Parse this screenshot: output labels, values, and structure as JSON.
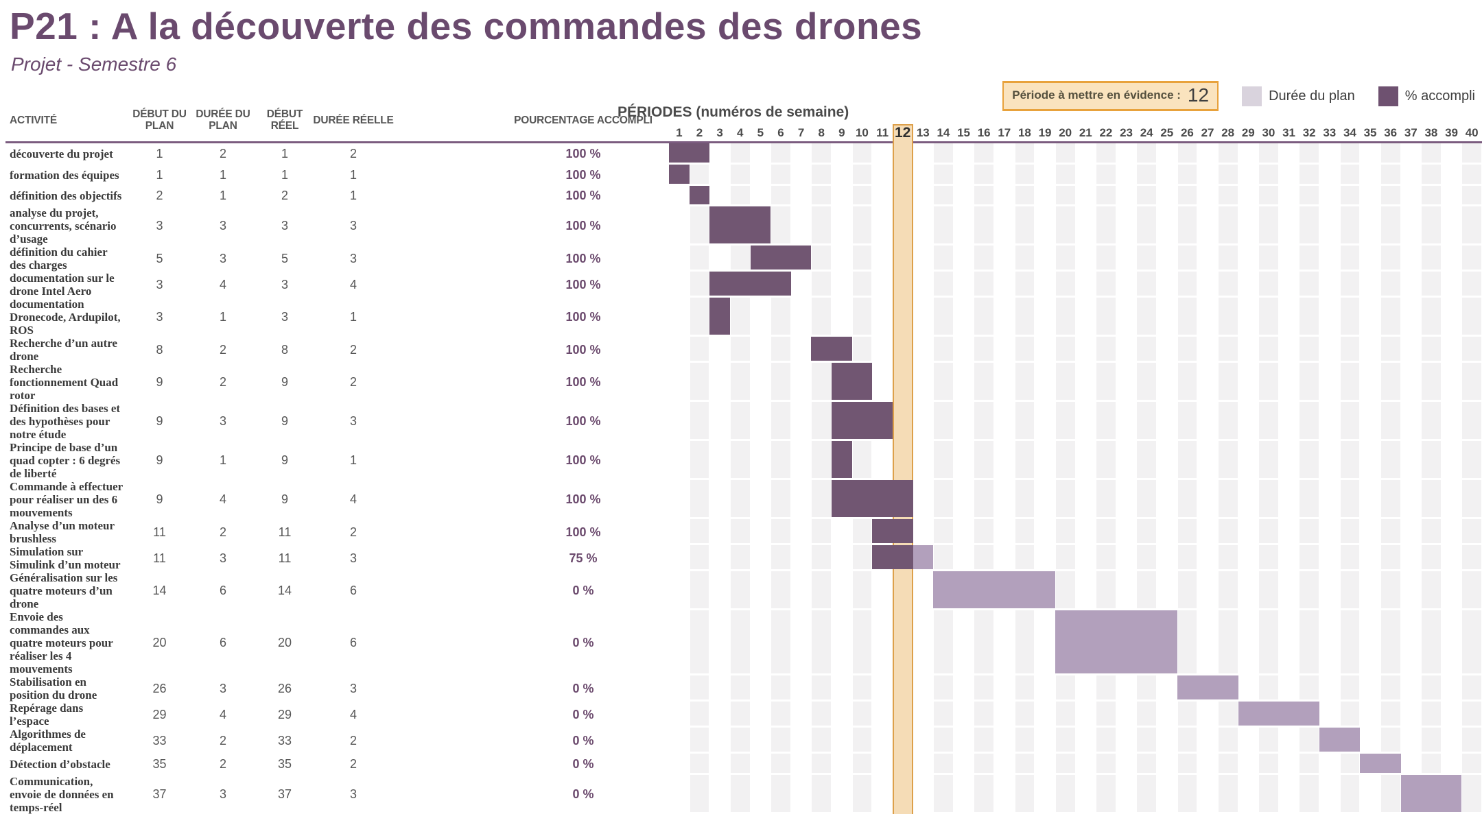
{
  "title": "P21 : A la découverte des commandes des drones",
  "subtitle": "Projet - Semestre 6",
  "highlight": {
    "label": "Période à mettre en évidence :",
    "value": "12"
  },
  "legend": [
    {
      "label": "Durée du plan",
      "color": "#d9d3dd"
    },
    {
      "label": "% accompli",
      "color": "#6e5170"
    }
  ],
  "table_headers": {
    "activity": "ACTIVITÉ",
    "plan_start": "DÉBUT DU PLAN",
    "plan_dur": "DURÉE DU PLAN",
    "real_start": "DÉBUT RÉEL",
    "real_dur": "DURÉE RÉELLE",
    "pct": "POURCENTAGE ACCOMPLI"
  },
  "periods": {
    "title": "PÉRIODES (numéros de semaine)",
    "weeks": [
      1,
      2,
      3,
      4,
      5,
      6,
      7,
      8,
      9,
      10,
      11,
      12,
      13,
      14,
      15,
      16,
      17,
      18,
      19,
      20,
      21,
      22,
      23,
      24,
      25,
      26,
      27,
      28,
      29,
      30,
      31,
      32,
      33,
      34,
      35,
      36,
      37,
      38,
      39,
      40
    ],
    "highlight_week": 12
  },
  "rows": [
    {
      "activity": "découverte du projet",
      "plan_start": 1,
      "plan_dur": 2,
      "real_start": 1,
      "real_dur": 2,
      "pct": "100 %",
      "tall": false,
      "bars": [
        {
          "type": "done",
          "start": 1,
          "len": 2
        }
      ]
    },
    {
      "activity": "formation des équipes",
      "plan_start": 1,
      "plan_dur": 1,
      "real_start": 1,
      "real_dur": 1,
      "pct": "100 %",
      "tall": false,
      "bars": [
        {
          "type": "done",
          "start": 1,
          "len": 1
        }
      ]
    },
    {
      "activity": "définition des objectifs",
      "plan_start": 2,
      "plan_dur": 1,
      "real_start": 2,
      "real_dur": 1,
      "pct": "100 %",
      "tall": false,
      "bars": [
        {
          "type": "done",
          "start": 2,
          "len": 1
        }
      ]
    },
    {
      "activity": "analyse du projet, concurrents, scénario d’usage",
      "plan_start": 3,
      "plan_dur": 3,
      "real_start": 3,
      "real_dur": 3,
      "pct": "100 %",
      "tall": false,
      "bars": [
        {
          "type": "done",
          "start": 3,
          "len": 3
        }
      ]
    },
    {
      "activity": "définition du cahier des charges",
      "plan_start": 5,
      "plan_dur": 3,
      "real_start": 5,
      "real_dur": 3,
      "pct": "100 %",
      "tall": false,
      "bars": [
        {
          "type": "done",
          "start": 5,
          "len": 3
        }
      ]
    },
    {
      "activity": "documentation sur le drone Intel Aero",
      "plan_start": 3,
      "plan_dur": 4,
      "real_start": 3,
      "real_dur": 4,
      "pct": "100 %",
      "tall": false,
      "bars": [
        {
          "type": "done",
          "start": 3,
          "len": 4
        }
      ]
    },
    {
      "activity": "documentation Dronecode, Ardupilot, ROS",
      "plan_start": 3,
      "plan_dur": 1,
      "real_start": 3,
      "real_dur": 1,
      "pct": "100 %",
      "tall": false,
      "bars": [
        {
          "type": "done",
          "start": 3,
          "len": 1
        }
      ]
    },
    {
      "activity": "Recherche d’un autre drone",
      "plan_start": 8,
      "plan_dur": 2,
      "real_start": 8,
      "real_dur": 2,
      "pct": "100 %",
      "tall": false,
      "bars": [
        {
          "type": "done",
          "start": 8,
          "len": 2
        }
      ]
    },
    {
      "activity": "Recherche fonctionnement Quad rotor",
      "plan_start": 9,
      "plan_dur": 2,
      "real_start": 9,
      "real_dur": 2,
      "pct": "100 %",
      "tall": false,
      "bars": [
        {
          "type": "done",
          "start": 9,
          "len": 2
        }
      ]
    },
    {
      "activity": "Définition des bases et des hypothèses pour notre étude",
      "plan_start": 9,
      "plan_dur": 3,
      "real_start": 9,
      "real_dur": 3,
      "pct": "100 %",
      "tall": false,
      "bars": [
        {
          "type": "done",
          "start": 9,
          "len": 3
        }
      ]
    },
    {
      "activity": "Principe de base d’un quad copter : 6 degrés de liberté",
      "plan_start": 9,
      "plan_dur": 1,
      "real_start": 9,
      "real_dur": 1,
      "pct": "100 %",
      "tall": false,
      "bars": [
        {
          "type": "done",
          "start": 9,
          "len": 1
        }
      ]
    },
    {
      "activity": "Commande à effectuer pour réaliser un des 6 mouvements",
      "plan_start": 9,
      "plan_dur": 4,
      "real_start": 9,
      "real_dur": 4,
      "pct": "100 %",
      "tall": false,
      "bars": [
        {
          "type": "done",
          "start": 9,
          "len": 4
        }
      ]
    },
    {
      "activity": "Analyse d’un moteur brushless",
      "plan_start": 11,
      "plan_dur": 2,
      "real_start": 11,
      "real_dur": 2,
      "pct": "100 %",
      "tall": false,
      "bars": [
        {
          "type": "done",
          "start": 11,
          "len": 2
        }
      ]
    },
    {
      "activity": "Simulation sur Simulink d’un moteur",
      "plan_start": 11,
      "plan_dur": 3,
      "real_start": 11,
      "real_dur": 3,
      "pct": "75 %",
      "tall": false,
      "bars": [
        {
          "type": "done",
          "start": 11,
          "len": 2
        },
        {
          "type": "plan",
          "start": 13,
          "len": 1
        }
      ]
    },
    {
      "activity": "Généralisation sur les quatre moteurs d’un drone",
      "plan_start": 14,
      "plan_dur": 6,
      "real_start": 14,
      "real_dur": 6,
      "pct": "0 %",
      "tall": false,
      "bars": [
        {
          "type": "plan",
          "start": 14,
          "len": 6
        }
      ]
    },
    {
      "activity": "Envoie des commandes aux quatre moteurs pour réaliser les 4 mouvements",
      "plan_start": 20,
      "plan_dur": 6,
      "real_start": 20,
      "real_dur": 6,
      "pct": "0 %",
      "tall": true,
      "bars": [
        {
          "type": "plan",
          "start": 20,
          "len": 6
        }
      ]
    },
    {
      "activity": "Stabilisation en position du drone",
      "plan_start": 26,
      "plan_dur": 3,
      "real_start": 26,
      "real_dur": 3,
      "pct": "0 %",
      "tall": false,
      "bars": [
        {
          "type": "plan",
          "start": 26,
          "len": 3
        }
      ]
    },
    {
      "activity": "Repérage dans l’espace",
      "plan_start": 29,
      "plan_dur": 4,
      "real_start": 29,
      "real_dur": 4,
      "pct": "0 %",
      "tall": false,
      "bars": [
        {
          "type": "plan",
          "start": 29,
          "len": 4
        }
      ]
    },
    {
      "activity": "Algorithmes de déplacement",
      "plan_start": 33,
      "plan_dur": 2,
      "real_start": 33,
      "real_dur": 2,
      "pct": "0 %",
      "tall": false,
      "bars": [
        {
          "type": "plan",
          "start": 33,
          "len": 2
        }
      ]
    },
    {
      "activity": "Détection d’obstacle",
      "plan_start": 35,
      "plan_dur": 2,
      "real_start": 35,
      "real_dur": 2,
      "pct": "0 %",
      "tall": false,
      "bars": [
        {
          "type": "plan",
          "start": 35,
          "len": 2
        }
      ]
    },
    {
      "activity": "Communication, envoie de données en temps-réel",
      "plan_start": 37,
      "plan_dur": 3,
      "real_start": 37,
      "real_dur": 3,
      "pct": "0 %",
      "tall": false,
      "bars": [
        {
          "type": "plan",
          "start": 37,
          "len": 3
        }
      ]
    }
  ],
  "colors": {
    "bar_done": "#715672",
    "bar_plan": "#b2a0bc",
    "band_gray": "#f2f1f2",
    "highlight_fill": "#f5dcb6",
    "highlight_border": "#dda04a",
    "accent_purple": "#6a4a6e",
    "rule_purple": "#7b5c7f"
  },
  "chart_data": {
    "type": "bar",
    "subtype": "gantt",
    "title": "P21 : A la découverte des commandes des drones",
    "xlabel": "PÉRIODES (numéros de semaine)",
    "x_range": [
      1,
      40
    ],
    "highlight_week": 12,
    "legend": [
      "Durée du plan",
      "% accompli"
    ],
    "categories": [
      "découverte du projet",
      "formation des équipes",
      "définition des objectifs",
      "analyse du projet, concurrents, scénario d’usage",
      "définition du cahier des charges",
      "documentation sur le drone Intel Aero",
      "documentation Dronecode, Ardupilot, ROS",
      "Recherche d’un autre drone",
      "Recherche fonctionnement Quad rotor",
      "Définition des bases et des hypothèses pour notre étude",
      "Principe de base d’un quad copter : 6 degrés de liberté",
      "Commande à effectuer pour réaliser un des 6 mouvements",
      "Analyse d’un moteur brushless",
      "Simulation sur Simulink d’un moteur",
      "Généralisation sur les quatre moteurs d’un drone",
      "Envoie des commandes aux quatre moteurs pour réaliser les 4 mouvements",
      "Stabilisation en position du drone",
      "Repérage dans l’espace",
      "Algorithmes de déplacement",
      "Détection d’obstacle",
      "Communication, envoie de données en temps-réel"
    ],
    "series": [
      {
        "name": "début du plan",
        "values": [
          1,
          1,
          2,
          3,
          5,
          3,
          3,
          8,
          9,
          9,
          9,
          9,
          11,
          11,
          14,
          20,
          26,
          29,
          33,
          35,
          37
        ]
      },
      {
        "name": "durée du plan",
        "values": [
          2,
          1,
          1,
          3,
          3,
          4,
          1,
          2,
          2,
          3,
          1,
          4,
          2,
          3,
          6,
          6,
          3,
          4,
          2,
          2,
          3
        ]
      },
      {
        "name": "début réel",
        "values": [
          1,
          1,
          2,
          3,
          5,
          3,
          3,
          8,
          9,
          9,
          9,
          9,
          11,
          11,
          14,
          20,
          26,
          29,
          33,
          35,
          37
        ]
      },
      {
        "name": "durée réelle",
        "values": [
          2,
          1,
          1,
          3,
          3,
          4,
          1,
          2,
          2,
          3,
          1,
          4,
          2,
          3,
          6,
          6,
          3,
          4,
          2,
          2,
          3
        ]
      },
      {
        "name": "pourcentage accompli",
        "values": [
          100,
          100,
          100,
          100,
          100,
          100,
          100,
          100,
          100,
          100,
          100,
          100,
          100,
          75,
          0,
          0,
          0,
          0,
          0,
          0,
          0
        ]
      }
    ]
  }
}
